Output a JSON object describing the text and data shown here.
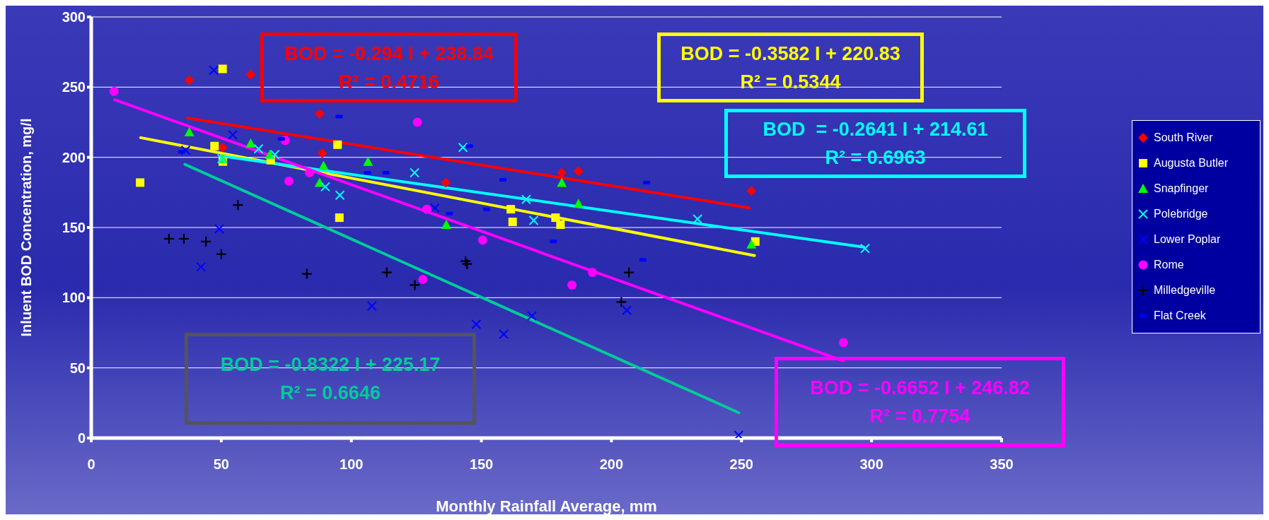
{
  "chart_data": {
    "type": "scatter",
    "xlabel": "Monthly Rainfall Average, mm",
    "ylabel": "Inluent BOD Concentration, mg/l",
    "xlim": [
      0,
      350
    ],
    "xticks": [
      0,
      50,
      100,
      150,
      200,
      250,
      300,
      350
    ],
    "ylim": [
      0,
      300
    ],
    "yticks": [
      0,
      50,
      100,
      150,
      200,
      250,
      300
    ],
    "grid": "y",
    "legend": "right",
    "series": [
      {
        "name": "South River",
        "color": "#ff0000",
        "marker": "diamond",
        "x": [
          37.7,
          61.3,
          87.8,
          88.8,
          50.5,
          136.3,
          180.9,
          187.3,
          253.8
        ],
        "values": [
          255,
          259,
          231,
          203,
          207,
          182,
          189,
          190,
          176
        ]
      },
      {
        "name": "Augusta Butler",
        "color": "#ffff00",
        "marker": "square",
        "x": [
          50.5,
          18.8,
          47.4,
          50.6,
          69,
          94.7,
          95.4,
          161.3,
          162,
          178.5,
          180.4,
          255.3
        ],
        "values": [
          263,
          182,
          208,
          197,
          198,
          209,
          157,
          163,
          154,
          157,
          152,
          140
        ]
      },
      {
        "name": "Snapfinger",
        "color": "#00ff00",
        "marker": "triangle",
        "x": [
          37.7,
          50.5,
          61.3,
          68.7,
          87.8,
          89.3,
          106.4,
          136.5,
          180.9,
          187.3,
          253.8
        ],
        "values": [
          218,
          199,
          210,
          202,
          182,
          194,
          197,
          152,
          182,
          167,
          138
        ]
      },
      {
        "name": "Polebridge",
        "color": "#00ffff",
        "marker": "cross",
        "x": [
          50.2,
          64.3,
          70.6,
          90,
          95.6,
          124.3,
          142.9,
          167.2,
          170.1,
          233.1,
          297.5
        ],
        "values": [
          199,
          206,
          202,
          179,
          173,
          189,
          207,
          170,
          155,
          156,
          135
        ]
      },
      {
        "name": "Lower Poplar",
        "color": "#0000ff",
        "marker": "cross",
        "x": [
          47.1,
          54.4,
          36.3,
          49.2,
          42.2,
          107.9,
          132.1,
          148,
          158.6,
          169.4,
          205.9,
          248.9
        ],
        "values": [
          262,
          216,
          205,
          149,
          122,
          94,
          164,
          81,
          74,
          87,
          91,
          2
        ]
      },
      {
        "name": "Rome",
        "color": "#ff00ff",
        "marker": "circle",
        "x": [
          8.8,
          74.6,
          76,
          83.9,
          125.4,
          129,
          127.5,
          150.5,
          192.7,
          184.8,
          289.2
        ],
        "values": [
          247,
          212,
          183,
          189,
          225,
          163,
          113,
          141,
          118,
          109,
          68
        ]
      },
      {
        "name": "Milledgeville",
        "color": "#000000",
        "marker": "plus",
        "x": [
          29.9,
          35.6,
          44.1,
          50,
          56.4,
          82.9,
          113.6,
          124.4,
          143.9,
          144.5,
          206.7,
          203.8
        ],
        "values": [
          142,
          142,
          140,
          131,
          166,
          117,
          118,
          109,
          126,
          124,
          118,
          97
        ]
      },
      {
        "name": "Flat Creek",
        "color": "#0000ff",
        "x": [
          34.8,
          73.1,
          95.3,
          106.2,
          113.3,
          145.4,
          137.7,
          152,
          158.3,
          177.7,
          213.5,
          212.1
        ],
        "values": [
          204,
          213,
          229,
          189,
          189,
          208,
          160,
          163,
          184,
          140,
          182,
          127
        ]
      },
      {
        "type": "line",
        "color": "#ff0000",
        "marker": "none",
        "x": [
          37,
          253
        ],
        "values": [
          228,
          164
        ]
      },
      {
        "type": "line",
        "color": "#ffff00",
        "marker": "none",
        "x": [
          19,
          255
        ],
        "values": [
          214,
          130
        ]
      },
      {
        "type": "line",
        "color": "#00ffff",
        "marker": "none",
        "x": [
          50,
          297
        ],
        "values": [
          201,
          136
        ]
      },
      {
        "type": "line",
        "color": "#00cc99",
        "marker": "none",
        "x": [
          36,
          249
        ],
        "values": [
          195,
          18
        ]
      },
      {
        "type": "line",
        "color": "#ff00ff",
        "marker": "none",
        "x": [
          9,
          289
        ],
        "values": [
          241,
          55
        ]
      }
    ],
    "annotations": [
      "BOD = -0.294 I + 238.84",
      "R² = 0.4716",
      "BOD = -0.3582 I + 220.83",
      "R² = 0.5344",
      "BOD  = -0.2641 I + 214.61",
      "R² = 0.6963",
      "BOD = -0.8322 I + 225.17",
      "R² = 0.6646",
      "BOD = -0.6652 I + 246.82",
      "R² = 0.7754"
    ]
  }
}
